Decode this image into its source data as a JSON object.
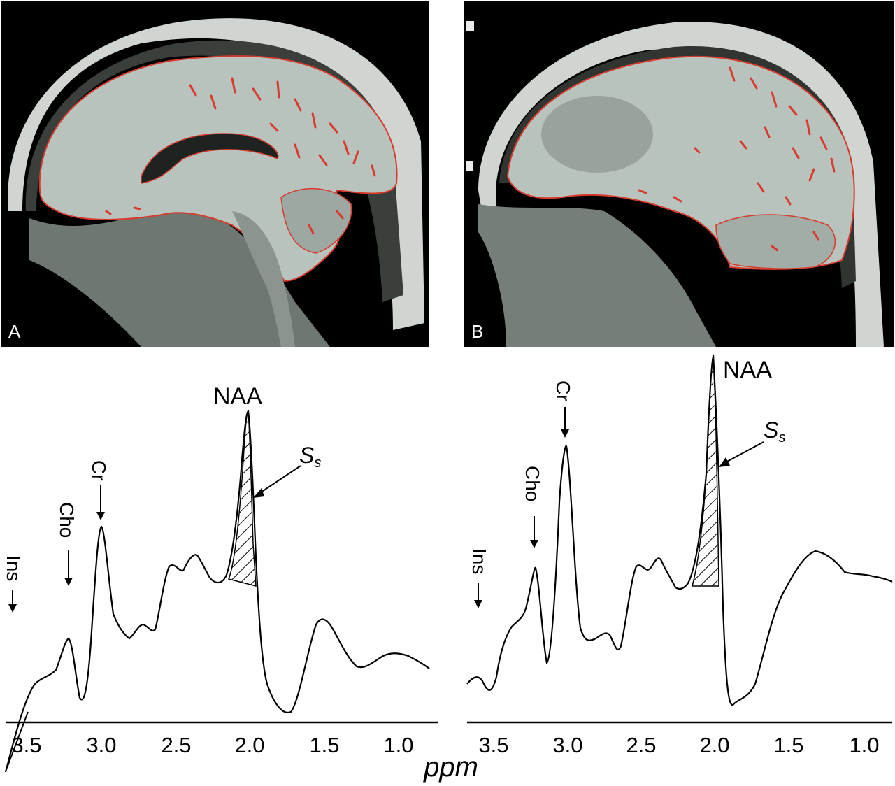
{
  "panels": [
    {
      "label": "A"
    },
    {
      "label": "B"
    }
  ],
  "xaxis": {
    "label": "ppm",
    "ticks": [
      "3.5",
      "3.0",
      "2.5",
      "2.0",
      "1.5",
      "1.0"
    ]
  },
  "peaks": {
    "ins": "Ins",
    "cho": "Cho",
    "cr": "Cr",
    "naa": "NAA",
    "ss_main": "S",
    "ss_sub": "s"
  },
  "colors": {
    "contour": "#d93a2b",
    "brain": "#b9c3bd",
    "skull": "#e8ece9",
    "background": "#000000",
    "line": "#000000"
  }
}
